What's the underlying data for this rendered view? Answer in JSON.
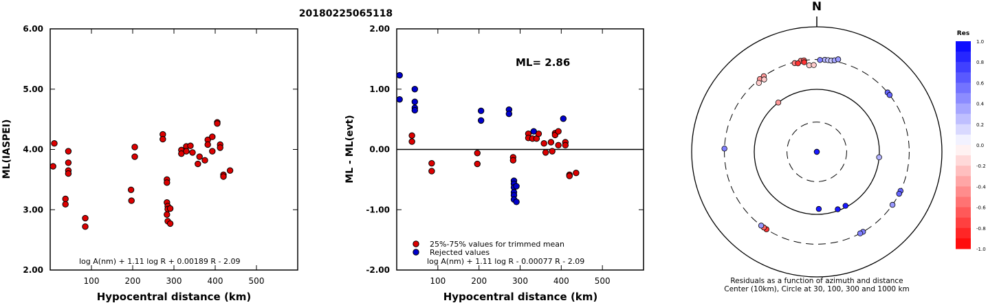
{
  "event_id": "20180225065118",
  "chart_data": [
    {
      "type": "scatter",
      "xlabel": "Hypocentral distance (km)",
      "ylabel": "ML(IASPEI)",
      "xlim": [
        0,
        600
      ],
      "ylim": [
        2.0,
        6.0
      ],
      "xticks": [
        100,
        200,
        300,
        400,
        500
      ],
      "yticks": [
        "2.00",
        "3.00",
        "4.00",
        "5.00",
        "6.00"
      ],
      "formula": "log A(nm) + 1.11 log R + 0.00189 R - 2.09",
      "series": [
        {
          "color": "#dd0000",
          "points": [
            [
              10,
              4.1
            ],
            [
              7,
              3.72
            ],
            [
              37,
              3.18
            ],
            [
              37,
              3.09
            ],
            [
              44,
              3.97
            ],
            [
              44,
              3.78
            ],
            [
              44,
              3.65
            ],
            [
              44,
              3.6
            ],
            [
              85,
              2.86
            ],
            [
              85,
              2.72
            ],
            [
              196,
              3.33
            ],
            [
              197,
              3.15
            ],
            [
              205,
              4.04
            ],
            [
              205,
              3.88
            ],
            [
              273,
              4.25
            ],
            [
              273,
              4.17
            ],
            [
              283,
              3.5
            ],
            [
              283,
              3.45
            ],
            [
              283,
              3.12
            ],
            [
              285,
              3.06
            ],
            [
              285,
              3.01
            ],
            [
              283,
              2.92
            ],
            [
              285,
              2.81
            ],
            [
              291,
              2.77
            ],
            [
              291,
              3.02
            ],
            [
              318,
              3.99
            ],
            [
              318,
              3.93
            ],
            [
              330,
              4.05
            ],
            [
              330,
              3.97
            ],
            [
              340,
              4.06
            ],
            [
              345,
              3.95
            ],
            [
              358,
              3.76
            ],
            [
              362,
              3.88
            ],
            [
              375,
              3.82
            ],
            [
              382,
              4.16
            ],
            [
              382,
              4.08
            ],
            [
              393,
              4.21
            ],
            [
              393,
              3.97
            ],
            [
              405,
              4.45
            ],
            [
              405,
              4.43
            ],
            [
              412,
              4.08
            ],
            [
              412,
              4.03
            ],
            [
              420,
              3.58
            ],
            [
              420,
              3.55
            ],
            [
              436,
              3.65
            ]
          ]
        }
      ]
    },
    {
      "type": "scatter",
      "xlabel": "Hypocentral distance (km)",
      "ylabel": "ML - ML(evt)",
      "xlim": [
        0,
        600
      ],
      "ylim": [
        -2.0,
        2.0
      ],
      "xticks": [
        100,
        200,
        300,
        400,
        500
      ],
      "yticks": [
        "-2.00",
        "-1.00",
        "0.00",
        "1.00",
        "2.00"
      ],
      "annotation": "ML= 2.86",
      "formula": "log A(nm) + 1.11 log R - 0.00077 R - 2.09",
      "legend": [
        "25%-75% values for trimmed mean",
        "Rejected values"
      ],
      "series": [
        {
          "name": "25%-75% values for trimmed mean",
          "color": "#dd0000",
          "points": [
            [
              37,
              0.23
            ],
            [
              37,
              0.13
            ],
            [
              85,
              -0.23
            ],
            [
              85,
              -0.36
            ],
            [
              196,
              -0.06
            ],
            [
              196,
              -0.24
            ],
            [
              283,
              -0.13
            ],
            [
              283,
              -0.18
            ],
            [
              320,
              0.26
            ],
            [
              320,
              0.19
            ],
            [
              330,
              0.18
            ],
            [
              340,
              0.18
            ],
            [
              345,
              0.26
            ],
            [
              358,
              0.1
            ],
            [
              362,
              -0.05
            ],
            [
              375,
              0.12
            ],
            [
              378,
              -0.03
            ],
            [
              385,
              0.27
            ],
            [
              385,
              0.24
            ],
            [
              393,
              0.3
            ],
            [
              393,
              0.07
            ],
            [
              410,
              0.12
            ],
            [
              410,
              0.07
            ],
            [
              420,
              -0.42
            ],
            [
              420,
              -0.44
            ],
            [
              436,
              -0.39
            ]
          ]
        },
        {
          "name": "Rejected values",
          "color": "#0000cc",
          "points": [
            [
              7,
              1.23
            ],
            [
              7,
              0.83
            ],
            [
              44,
              1.0
            ],
            [
              44,
              0.79
            ],
            [
              44,
              0.69
            ],
            [
              44,
              0.65
            ],
            [
              205,
              0.64
            ],
            [
              205,
              0.48
            ],
            [
              273,
              0.66
            ],
            [
              273,
              0.59
            ],
            [
              285,
              -0.52
            ],
            [
              285,
              -0.57
            ],
            [
              285,
              -0.63
            ],
            [
              291,
              -0.61
            ],
            [
              285,
              -0.71
            ],
            [
              285,
              -0.76
            ],
            [
              285,
              -0.83
            ],
            [
              291,
              -0.87
            ],
            [
              333,
              0.3
            ],
            [
              405,
              0.51
            ]
          ]
        }
      ]
    },
    {
      "type": "scatter",
      "title": "N",
      "subtitle": "Residuals as a function of azimuth and distance",
      "caption": "Center (10km), Circle at 30, 100, 300 and 1000 km",
      "colorbar": {
        "label": "Res",
        "ticks": [
          "1.0",
          "0.8",
          "0.6",
          "0.4",
          "0.2",
          "0.0",
          "-0.2",
          "-0.4",
          "-0.6",
          "-0.8",
          "-1.0"
        ],
        "max_color": "#0000ff",
        "zero_color": "#ffffff",
        "min_color": "#ff0000"
      },
      "points": [
        {
          "azimuth": 0,
          "distance": 10,
          "res": 0.9
        },
        {
          "azimuth": 177,
          "distance": 10,
          "res": 0.9
        },
        {
          "azimuth": 5,
          "distance": 300,
          "res": 0.3
        },
        {
          "azimuth": 7,
          "distance": 300,
          "res": 0.25
        },
        {
          "azimuth": 9,
          "distance": 300,
          "res": 0.2
        },
        {
          "azimuth": 11,
          "distance": 310,
          "res": 0.35
        },
        {
          "azimuth": 13,
          "distance": 330,
          "res": 0.4
        },
        {
          "azimuth": 2,
          "distance": 295,
          "res": 0.5
        },
        {
          "azimuth": 350,
          "distance": 300,
          "res": -0.5
        },
        {
          "azimuth": 352,
          "distance": 300,
          "res": -0.6
        },
        {
          "azimuth": 346,
          "distance": 290,
          "res": -0.5
        },
        {
          "azimuth": 348,
          "distance": 280,
          "res": -0.8
        },
        {
          "azimuth": 352,
          "distance": 280,
          "res": -0.8
        },
        {
          "azimuth": 355,
          "distance": 245,
          "res": -0.2
        },
        {
          "azimuth": 358,
          "distance": 245,
          "res": -0.2
        },
        {
          "azimuth": 322,
          "distance": 300,
          "res": -0.4
        },
        {
          "azimuth": 325,
          "distance": 300,
          "res": -0.4
        },
        {
          "azimuth": 320,
          "distance": 275,
          "res": -0.2
        },
        {
          "azimuth": 324,
          "distance": 270,
          "res": -0.2
        },
        {
          "azimuth": 322,
          "distance": 100,
          "res": -0.4
        },
        {
          "azimuth": 50,
          "distance": 300,
          "res": 0.6
        },
        {
          "azimuth": 52,
          "distance": 300,
          "res": 0.6
        },
        {
          "azimuth": 95,
          "distance": 100,
          "res": 0.3
        },
        {
          "azimuth": 272,
          "distance": 300,
          "res": 0.5
        },
        {
          "azimuth": 115,
          "distance": 300,
          "res": 0.6
        },
        {
          "azimuth": 117,
          "distance": 300,
          "res": 0.6
        },
        {
          "azimuth": 125,
          "distance": 300,
          "res": 0.4
        },
        {
          "azimuth": 150,
          "distance": 300,
          "res": 0.5
        },
        {
          "azimuth": 152,
          "distance": 300,
          "res": 0.5
        },
        {
          "azimuth": 152,
          "distance": 95,
          "res": 0.9
        },
        {
          "azimuth": 160,
          "distance": 95,
          "res": 0.9
        },
        {
          "azimuth": 178,
          "distance": 82,
          "res": 0.9
        },
        {
          "azimuth": 213,
          "distance": 300,
          "res": -0.8
        },
        {
          "azimuth": 215,
          "distance": 300,
          "res": -0.6
        },
        {
          "azimuth": 217,
          "distance": 300,
          "res": 0.4
        }
      ]
    }
  ]
}
